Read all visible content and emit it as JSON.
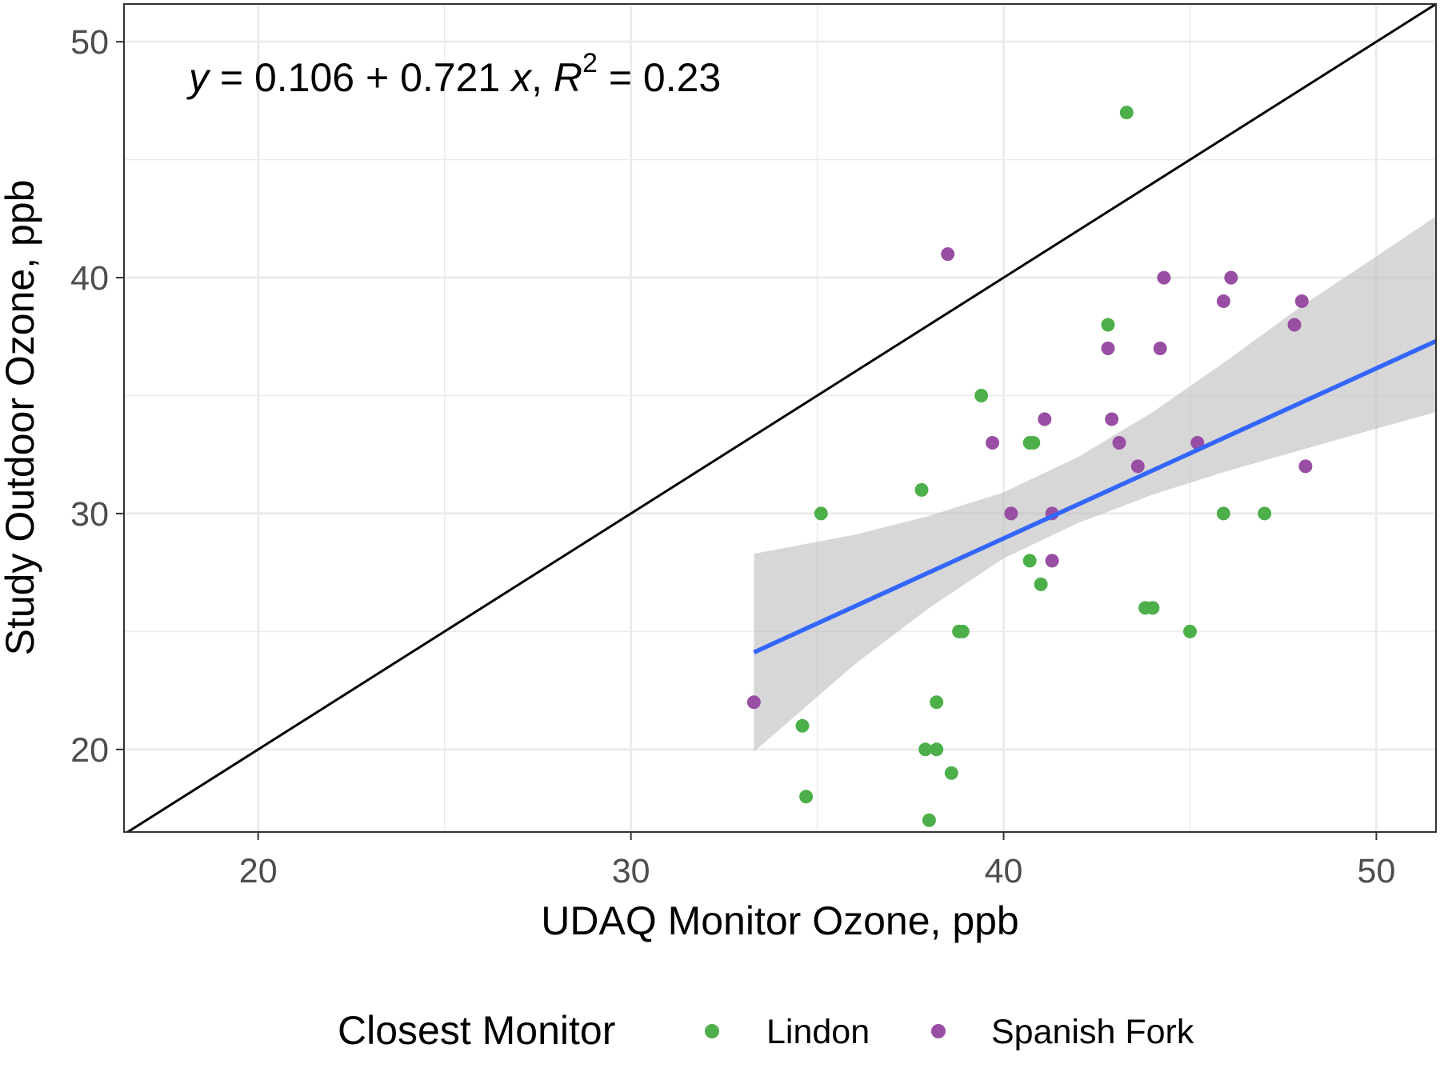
{
  "chart_data": {
    "type": "scatter",
    "xlabel": "UDAQ Monitor Ozone, ppb",
    "ylabel": "Study Outdoor Ozone, ppb",
    "xlim": [
      16.4,
      51.6
    ],
    "ylim": [
      16.5,
      51.6
    ],
    "x_ticks": [
      20,
      30,
      40,
      50
    ],
    "y_ticks": [
      20,
      30,
      40,
      50
    ],
    "x_minor": [
      25,
      35,
      45
    ],
    "y_minor": [
      25,
      35,
      45
    ],
    "grid": true,
    "annotation": {
      "y": "y",
      "eq1": " = 0.106 + 0.721 ",
      "x": "x",
      "sep": ", ",
      "R": "R",
      "sup": "2",
      "eq2": " = 0.23"
    },
    "legend": {
      "title": "Closest Monitor",
      "position": "bottom",
      "entries": [
        "Lindon",
        "Spanish Fork"
      ]
    },
    "colors": {
      "Lindon": "#4daf4a",
      "Spanish Fork": "#984ea3",
      "fit_line": "#3366ff",
      "confidence_band": "#bdbdbd",
      "identity_line": "#000000",
      "grid": "#ebebeb"
    },
    "identity_line": {
      "slope": 1,
      "intercept": 0
    },
    "fit": {
      "intercept": 0.106,
      "slope": 0.721,
      "x_range": [
        33.3,
        51.6
      ]
    },
    "confidence_band": [
      {
        "x": 33.3,
        "lower": 19.9,
        "upper": 28.3
      },
      {
        "x": 36.0,
        "lower": 23.6,
        "upper": 29.1
      },
      {
        "x": 38.0,
        "lower": 26.0,
        "upper": 29.9
      },
      {
        "x": 40.0,
        "lower": 28.1,
        "upper": 30.9
      },
      {
        "x": 42.0,
        "lower": 29.6,
        "upper": 32.4
      },
      {
        "x": 44.0,
        "lower": 30.8,
        "upper": 34.3
      },
      {
        "x": 46.0,
        "lower": 31.8,
        "upper": 36.5
      },
      {
        "x": 48.0,
        "lower": 32.7,
        "upper": 38.8
      },
      {
        "x": 50.0,
        "lower": 33.6,
        "upper": 40.9
      },
      {
        "x": 51.6,
        "lower": 34.3,
        "upper": 42.6
      }
    ],
    "series": [
      {
        "name": "Lindon",
        "points": [
          [
            43.3,
            47
          ],
          [
            42.8,
            38
          ],
          [
            39.4,
            35
          ],
          [
            40.7,
            33
          ],
          [
            40.8,
            33
          ],
          [
            37.8,
            31
          ],
          [
            35.1,
            30
          ],
          [
            45.9,
            30
          ],
          [
            47.0,
            30
          ],
          [
            40.7,
            28
          ],
          [
            41.0,
            27
          ],
          [
            43.8,
            26
          ],
          [
            44.0,
            26
          ],
          [
            38.8,
            25
          ],
          [
            38.9,
            25
          ],
          [
            45.0,
            25
          ],
          [
            38.2,
            22
          ],
          [
            34.6,
            21
          ],
          [
            37.9,
            20
          ],
          [
            38.2,
            20
          ],
          [
            38.6,
            19
          ],
          [
            34.7,
            18
          ],
          [
            38.0,
            17
          ]
        ]
      },
      {
        "name": "Spanish Fork",
        "points": [
          [
            38.5,
            41
          ],
          [
            44.3,
            40
          ],
          [
            46.1,
            40
          ],
          [
            45.9,
            39
          ],
          [
            48.0,
            39
          ],
          [
            47.8,
            38
          ],
          [
            42.8,
            37
          ],
          [
            44.2,
            37
          ],
          [
            41.1,
            34
          ],
          [
            42.9,
            34
          ],
          [
            39.7,
            33
          ],
          [
            43.1,
            33
          ],
          [
            45.2,
            33
          ],
          [
            43.6,
            32
          ],
          [
            48.1,
            32
          ],
          [
            40.2,
            30
          ],
          [
            41.3,
            30
          ],
          [
            41.3,
            28
          ],
          [
            33.3,
            22
          ]
        ]
      }
    ]
  }
}
